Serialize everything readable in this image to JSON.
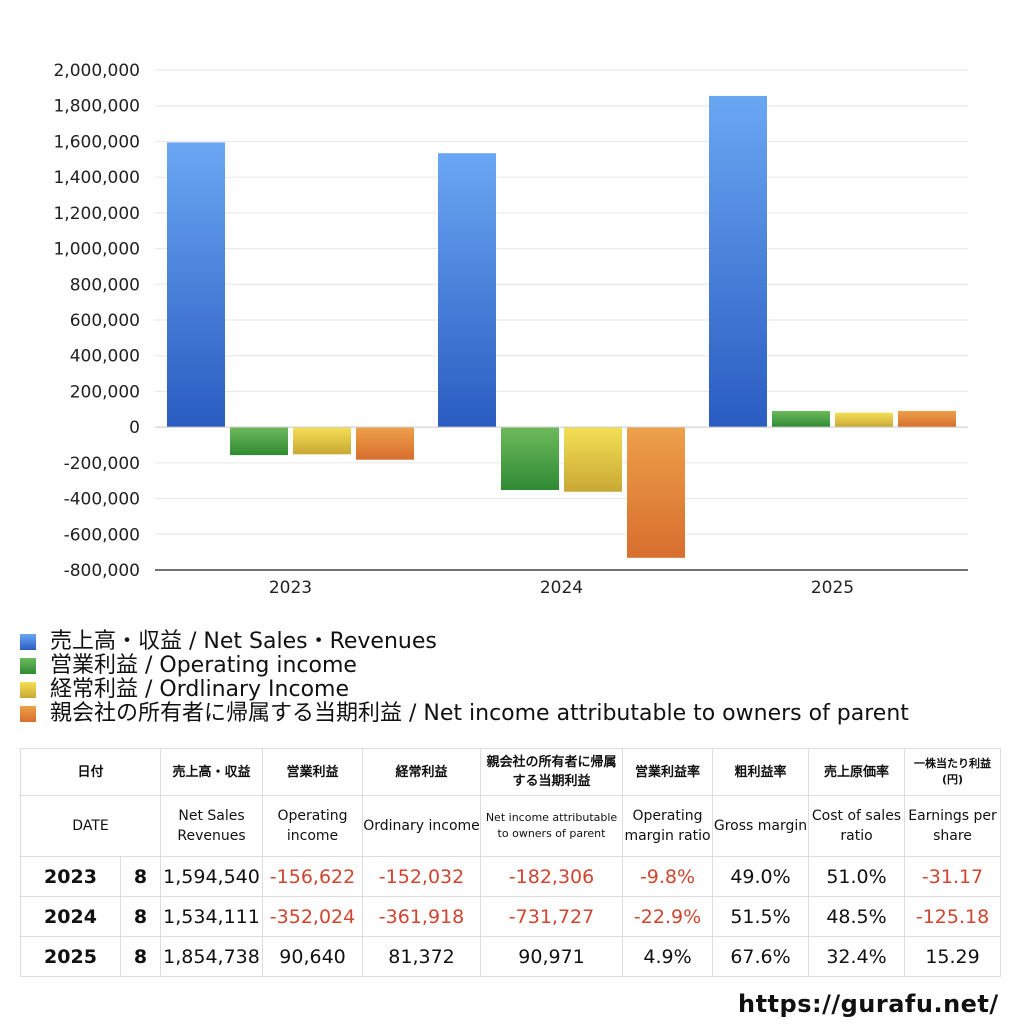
{
  "chart_data": {
    "type": "bar",
    "categories": [
      "2023",
      "2024",
      "2025"
    ],
    "ylim": [
      -800000,
      2000000
    ],
    "y_ticks": [
      "2,000,000",
      "1,800,000",
      "1,600,000",
      "1,400,000",
      "1,200,000",
      "1,000,000",
      "800,000",
      "600,000",
      "400,000",
      "200,000",
      "0",
      "-200,000",
      "-400,000",
      "-600,000",
      "-800,000"
    ],
    "grid": true,
    "legend_position": "bottom-left",
    "series": [
      {
        "name": "売上高・収益 / Net Sales・Revenues",
        "values": [
          1594540,
          1534111,
          1854738
        ],
        "color_top": "#6aa7f3",
        "color_bottom": "#2a5cc1",
        "color": "#4a86e0"
      },
      {
        "name": "営業利益 / Operating income",
        "values": [
          -156622,
          -352024,
          90640
        ],
        "color_top": "#6dba5c",
        "color_bottom": "#2f8a33",
        "color": "#49a046"
      },
      {
        "name": "経常利益 / Ordlinary Income",
        "values": [
          -152032,
          -361918,
          81372
        ],
        "color_top": "#f4df55",
        "color_bottom": "#c9a835",
        "color": "#e3c844"
      },
      {
        "name": "親会社の所有者に帰属する当期利益 / Net income attributable to owners of parent",
        "values": [
          -182306,
          -731727,
          90971
        ],
        "color_top": "#eda04a",
        "color_bottom": "#d86e2e",
        "color": "#e2873b"
      }
    ]
  },
  "table": {
    "headers_ja": [
      "日付",
      "売上高・収益",
      "営業利益",
      "経常利益",
      "親会社の所有者に帰属する当期利益",
      "営業利益率",
      "粗利益率",
      "売上原価率",
      "一株当たり利益(円)"
    ],
    "headers_en": [
      "DATE",
      "Net Sales Revenues",
      "Operating income",
      "Ordinary income",
      "Net income attributable to owners of parent",
      "Operating margin ratio",
      "Gross margin",
      "Cost of sales ratio",
      "Earnings per share"
    ],
    "rows": [
      {
        "year": "2023",
        "month": "8",
        "sales": "1,594,540",
        "operating": "-156,622",
        "ordinary": "-152,032",
        "net": "-182,306",
        "op_margin": "-9.8%",
        "gross": "49.0%",
        "cost": "51.0%",
        "eps": "-31.17"
      },
      {
        "year": "2024",
        "month": "8",
        "sales": "1,534,111",
        "operating": "-352,024",
        "ordinary": "-361,918",
        "net": "-731,727",
        "op_margin": "-22.9%",
        "gross": "51.5%",
        "cost": "48.5%",
        "eps": "-125.18"
      },
      {
        "year": "2025",
        "month": "8",
        "sales": "1,854,738",
        "operating": "90,640",
        "ordinary": "81,372",
        "net": "90,971",
        "op_margin": "4.9%",
        "gross": "67.6%",
        "cost": "32.4%",
        "eps": "15.29"
      }
    ]
  },
  "site_url": "https://gurafu.net/",
  "colors": {
    "negative_text": "#d0452f",
    "grid": "#e6e6e6",
    "axis": "#222222"
  }
}
